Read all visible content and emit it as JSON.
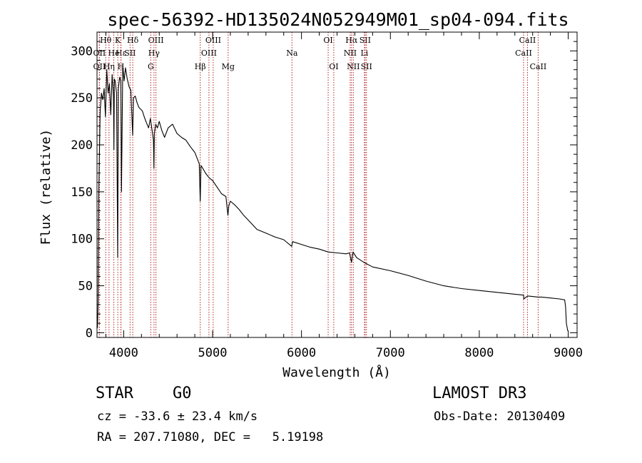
{
  "chart_data": {
    "type": "line",
    "title": "spec-56392-HD135024N052949M01_sp04-094.fits",
    "xlabel": "Wavelength (Å)",
    "ylabel": "Flux (relative)",
    "xlim": [
      3700,
      9100
    ],
    "ylim": [
      -5,
      320
    ],
    "xticks": [
      4000,
      5000,
      6000,
      7000,
      8000,
      9000
    ],
    "xtick_labels": [
      "4000",
      "5000",
      "6000",
      "7000",
      "8000",
      "9000"
    ],
    "yticks": [
      0,
      50,
      100,
      150,
      200,
      250,
      300
    ],
    "ytick_labels": [
      "0",
      "50",
      "100",
      "150",
      "200",
      "250",
      "300"
    ],
    "grid": false,
    "series": [
      {
        "name": "flux",
        "color": "#000000",
        "x": [
          3705,
          3712,
          3720,
          3735,
          3750,
          3765,
          3780,
          3795,
          3810,
          3825,
          3840,
          3855,
          3870,
          3885,
          3890,
          3895,
          3905,
          3920,
          3933,
          3940,
          3955,
          3968,
          3975,
          3990,
          4005,
          4020,
          4040,
          4060,
          4080,
          4101,
          4110,
          4130,
          4150,
          4170,
          4190,
          4210,
          4230,
          4250,
          4280,
          4300,
          4320,
          4335,
          4340,
          4345,
          4360,
          4380,
          4400,
          4430,
          4460,
          4500,
          4550,
          4600,
          4650,
          4700,
          4750,
          4800,
          4850,
          4861,
          4870,
          4890,
          4920,
          4960,
          5000,
          5050,
          5100,
          5150,
          5172,
          5183,
          5200,
          5250,
          5300,
          5350,
          5400,
          5450,
          5500,
          5600,
          5700,
          5800,
          5890,
          5900,
          6000,
          6100,
          6200,
          6300,
          6400,
          6500,
          6540,
          6563,
          6580,
          6620,
          6700,
          6800,
          7000,
          7200,
          7400,
          7600,
          7800,
          8000,
          8200,
          8400,
          8498,
          8500,
          8542,
          8560,
          8662,
          8700,
          8800,
          8900,
          8960,
          8970,
          8980,
          8995
        ],
        "y": [
          5,
          30,
          150,
          235,
          255,
          248,
          260,
          230,
          280,
          255,
          265,
          232,
          275,
          252,
          195,
          270,
          268,
          255,
          80,
          260,
          272,
          268,
          150,
          285,
          268,
          282,
          270,
          262,
          258,
          210,
          250,
          252,
          245,
          240,
          238,
          236,
          230,
          225,
          218,
          228,
          215,
          205,
          175,
          212,
          222,
          218,
          225,
          215,
          208,
          218,
          222,
          212,
          208,
          205,
          198,
          192,
          180,
          140,
          178,
          175,
          170,
          165,
          162,
          155,
          148,
          145,
          125,
          135,
          140,
          136,
          131,
          125,
          120,
          115,
          110,
          106,
          102,
          99,
          92,
          97,
          94,
          91,
          89,
          86,
          85,
          84,
          85,
          75,
          86,
          80,
          75,
          70,
          66,
          61,
          55,
          50,
          47,
          45,
          43,
          41,
          40,
          36,
          39,
          39,
          38,
          38,
          37,
          36,
          35,
          28,
          10,
          2
        ]
      }
    ],
    "lines": [
      {
        "label": "Hθ",
        "wavelength": 3798,
        "row": 0
      },
      {
        "label": "OII",
        "wavelength": 3727,
        "row": 1
      },
      {
        "label": "OII",
        "wavelength": 3727,
        "row": 2
      },
      {
        "label": "He",
        "wavelength": 3889,
        "row": 1
      },
      {
        "label": "Hη",
        "wavelength": 3835,
        "row": 2
      },
      {
        "label": "K",
        "wavelength": 3934,
        "row": 0
      },
      {
        "label": "Hε",
        "wavelength": 3970,
        "row": 1
      },
      {
        "label": "H",
        "wavelength": 3968,
        "row": 2
      },
      {
        "label": "SII",
        "wavelength": 4072,
        "row": 1
      },
      {
        "label": "Hδ",
        "wavelength": 4102,
        "row": 0
      },
      {
        "label": "OIII",
        "wavelength": 4363,
        "row": 0
      },
      {
        "label": "Hγ",
        "wavelength": 4341,
        "row": 1
      },
      {
        "label": "G",
        "wavelength": 4305,
        "row": 2
      },
      {
        "label": "Hβ",
        "wavelength": 4861,
        "row": 2
      },
      {
        "label": "OIII",
        "wavelength": 4959,
        "row": 1
      },
      {
        "label": "OIII",
        "wavelength": 5007,
        "row": 0
      },
      {
        "label": "Mg",
        "wavelength": 5175,
        "row": 2
      },
      {
        "label": "Na",
        "wavelength": 5893,
        "row": 1
      },
      {
        "label": "OI",
        "wavelength": 6300,
        "row": 0
      },
      {
        "label": "OI",
        "wavelength": 6363,
        "row": 2
      },
      {
        "label": "Hα",
        "wavelength": 6563,
        "row": 0
      },
      {
        "label": "NII",
        "wavelength": 6548,
        "row": 1
      },
      {
        "label": "NII",
        "wavelength": 6583,
        "row": 2
      },
      {
        "label": "SII",
        "wavelength": 6716,
        "row": 0
      },
      {
        "label": "Li",
        "wavelength": 6708,
        "row": 1
      },
      {
        "label": "SII",
        "wavelength": 6731,
        "row": 2
      },
      {
        "label": "CaII",
        "wavelength": 8542,
        "row": 0
      },
      {
        "label": "CaII",
        "wavelength": 8498,
        "row": 1
      },
      {
        "label": "CaII",
        "wavelength": 8662,
        "row": 2
      }
    ]
  },
  "info": {
    "class_label": "STAR",
    "subclass": "G0",
    "redshift": "cz = -33.6 ± 23.4 km/s",
    "coords": "RA = 207.71080, DEC =   5.19198",
    "survey": "LAMOST DR3",
    "obs_date": "Obs-Date: 20130409"
  }
}
